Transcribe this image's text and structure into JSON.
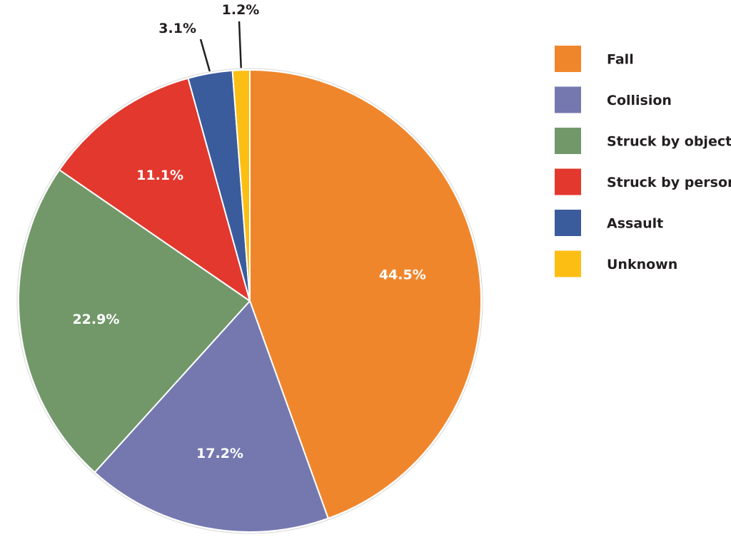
{
  "chart_data": {
    "type": "pie",
    "title": "",
    "start_angle_deg": 0,
    "direction": "clockwise",
    "legend_position": "right",
    "slices": [
      {
        "name": "Fall",
        "value": 44.5,
        "label": "44.5%",
        "color": "#f0862c",
        "label_placement": "inside"
      },
      {
        "name": "Collision",
        "value": 17.2,
        "label": "17.2%",
        "color": "#7578af",
        "label_placement": "inside"
      },
      {
        "name": "Struck by object",
        "value": 22.9,
        "label": "22.9%",
        "color": "#72986a",
        "label_placement": "inside"
      },
      {
        "name": "Struck by person",
        "value": 11.1,
        "label": "11.1%",
        "color": "#e2382e",
        "label_placement": "inside"
      },
      {
        "name": "Assault",
        "value": 3.1,
        "label": "3.1%",
        "color": "#3a5c9c",
        "label_placement": "outside"
      },
      {
        "name": "Unknown",
        "value": 1.2,
        "label": "1.2%",
        "color": "#fdbe14",
        "label_placement": "outside"
      }
    ]
  }
}
